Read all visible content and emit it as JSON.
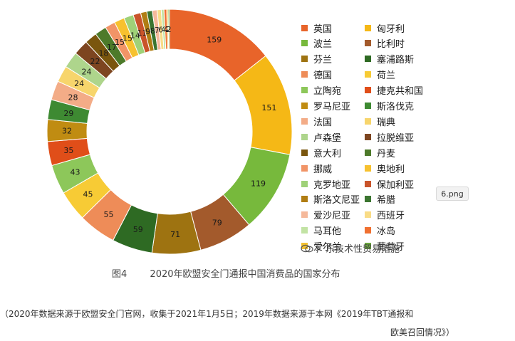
{
  "chart_data": {
    "type": "pie",
    "title": "",
    "categories": [
      "英国",
      "匈牙利",
      "波兰",
      "比利时",
      "芬兰",
      "塞浦路斯",
      "德国",
      "荷兰",
      "立陶宛",
      "捷克共和国",
      "罗马尼亚",
      "斯洛伐克",
      "法国",
      "瑞典",
      "卢森堡",
      "拉脱维亚",
      "意大利",
      "丹麦",
      "挪威",
      "奥地利",
      "克罗地亚",
      "保加利亚",
      "斯洛文尼亚",
      "希腊",
      "爱沙尼亚",
      "西班牙",
      "马耳他",
      "冰岛",
      "爱尔兰",
      "葡萄牙"
    ],
    "values": [
      159,
      151,
      119,
      79,
      71,
      59,
      55,
      45,
      43,
      35,
      32,
      29,
      28,
      24,
      24,
      22,
      18,
      17,
      15,
      15,
      14,
      11,
      9,
      8,
      7,
      6,
      4,
      4,
      2,
      2
    ],
    "colors": [
      "#e8642a",
      "#f5b816",
      "#77b93c",
      "#a35a2c",
      "#9e7311",
      "#2e6a23",
      "#ee8c58",
      "#f7cb35",
      "#8dc75a",
      "#e04e19",
      "#c08c12",
      "#3e8a32",
      "#f3ac87",
      "#f7d56c",
      "#aed58c",
      "#7d4520",
      "#7a560e",
      "#4d7a2a",
      "#f19467",
      "#f7c12f",
      "#9fd178",
      "#c9542a",
      "#b07d13",
      "#3b7530",
      "#f5b99b",
      "#f9dc86",
      "#c2e3a4",
      "#f07030",
      "#f2c030",
      "#6aa83c"
    ],
    "legend_position": "right"
  },
  "legend_items": [
    "英国",
    "匈牙利",
    "波兰",
    "比利时",
    "芬兰",
    "塞浦路斯",
    "德国",
    "荷兰",
    "立陶宛",
    "捷克共和国",
    "罗马尼亚",
    "斯洛伐克",
    "法国",
    "瑞典",
    "卢森堡",
    "拉脱维亚",
    "意大利",
    "丹麦",
    "挪威",
    "奥地利",
    "克罗地亚",
    "保加利亚",
    "斯洛文尼亚",
    "希腊",
    "爱沙尼亚",
    "西班牙",
    "马耳他",
    "冰岛",
    "爱尔兰",
    "葡萄牙"
  ],
  "tag": "6.png",
  "watermark": "广东技术性贸易措施",
  "caption": {
    "figure": "图4",
    "text": "2020年欧盟安全门通报中国消费品的国家分布"
  },
  "source": {
    "line1": "（2020年数据来源于欧盟安全门官网，收集于2021年1月5日；2019年数据来源于本网《2019年TBT通报和",
    "line2": "欧美召回情况》）"
  }
}
